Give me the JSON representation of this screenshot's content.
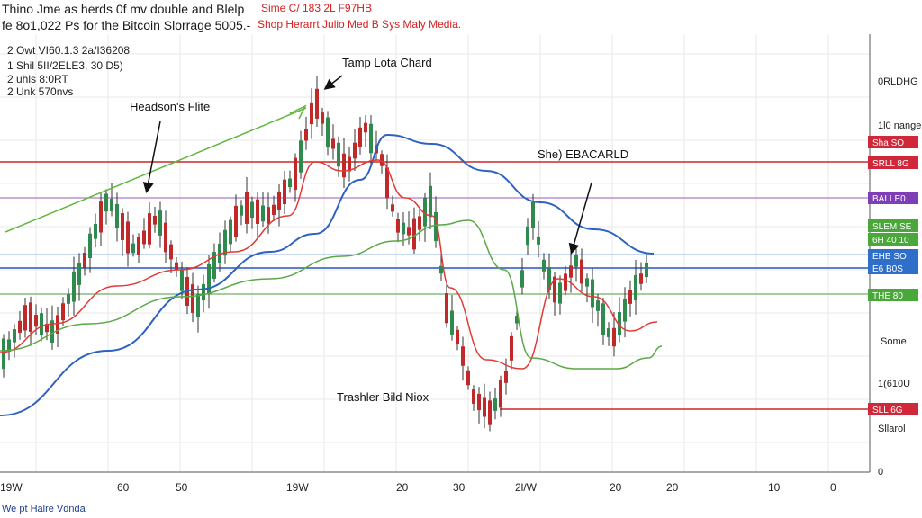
{
  "header": {
    "line1_main": "Thino Jme as herds 0f mv double and Blelp",
    "line1_red": "Sime C/ 183 2L F97HB",
    "line2_main": "fe 8o1,022 Ps for the Bitcoin Slorrage 5005.-",
    "line2_red": "Shop Herarrt Julio Med B Sys Maly Media."
  },
  "footer": {
    "text": "We pt Halre Vdnda"
  },
  "chart_data": {
    "type": "candlestick",
    "info_lines": [
      "2 Owt VI60.1.3 2a/I36208",
      "1 Shil 5II/2ELE3, 30 D5)",
      "2 uhls 8:0RT",
      "2 Unk 570nvs"
    ],
    "annotations": [
      "Tamp Lota Chard",
      "Headson's Flite",
      "She) EBACARLD",
      "Trashler Bild Niox"
    ],
    "x_ticks": [
      "19W",
      "60",
      "50",
      "19W",
      "20",
      "30",
      "2l/W",
      "20",
      "20",
      "10",
      "0"
    ],
    "right_labels": [
      "0RLDHG",
      "1l0 nange",
      "Some",
      "1(610U",
      "Sllarol",
      "0"
    ],
    "right_tags": [
      {
        "text": "Sha SO",
        "color": "#d0283a"
      },
      {
        "text": "SRLL 8G",
        "color": "#d0283a"
      },
      {
        "text": "BALLE0",
        "color": "#7e3fb6"
      },
      {
        "text": "SLEM SE",
        "color": "#4aa83a"
      },
      {
        "text": "6H 40 10",
        "color": "#4aa83a"
      },
      {
        "text": "EHB SO",
        "color": "#2f6fc9"
      },
      {
        "text": "E6 B0S",
        "color": "#2f6fc9"
      },
      {
        "text": "THE 80",
        "color": "#4aa83a"
      },
      {
        "text": "SLL 6G",
        "color": "#d0283a"
      }
    ],
    "colors": {
      "up": "#2f8a4e",
      "down": "#c0282a",
      "blue_ma": "#2e62c0",
      "red_ma": "#e03a34",
      "green_ma": "#5aa946",
      "trend": "#62b63f",
      "hline_red": "#c8282a",
      "hline_blue": "#2a57b4",
      "hline_green": "#4c9b3e",
      "hline_purple": "#9c5ab8",
      "hline_lightblue": "#8fb0e0"
    },
    "grid": true
  }
}
